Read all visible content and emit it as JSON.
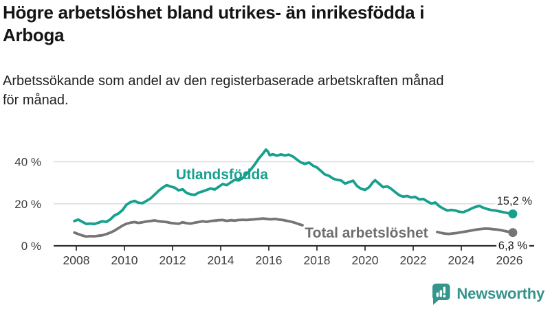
{
  "header": {
    "title": "Högre arbetslöshet bland utrikes- än inrikesfödda i\nArboga",
    "subtitle": "Arbetssökande som andel av den registerbaserade arbetskraften månad\nför månad."
  },
  "colors": {
    "series_teal": "#17a08e",
    "series_gray": "#757575",
    "series_gray_label": "#6e6e6e",
    "grid": "#dadada",
    "axis": "#2e2e2e",
    "tick_text": "#3d3d3d",
    "value_text": "#1f1f1f",
    "logo_teal": "#35948b"
  },
  "chart_data": {
    "type": "line",
    "title": "Högre arbetslöshet bland utrikes- än inrikesfödda i Arboga",
    "subtitle": "Arbetssökande som andel av den registerbaserade arbetskraften månad för månad.",
    "grid": true,
    "legend_position": "inline-labels",
    "x_axis": {
      "unit": "year",
      "range": [
        2007.9,
        2027.0
      ],
      "ticks": [
        2008,
        2010,
        2012,
        2014,
        2016,
        2018,
        2020,
        2022,
        2024,
        2026
      ]
    },
    "y_axis": {
      "unit": "%",
      "range": [
        0,
        50
      ],
      "ticks": [
        {
          "value": 0,
          "label": "0 %"
        },
        {
          "value": 20,
          "label": "20 %"
        },
        {
          "value": 40,
          "label": "40 %"
        }
      ]
    },
    "series": [
      {
        "name": "Utlandsfödda",
        "color": "#17a08e",
        "end_label": "15,2 %",
        "end_value": 15.2,
        "segments": [
          [
            [
              2007.92,
              11.8
            ],
            [
              2008.08,
              12.5
            ],
            [
              2008.25,
              11.4
            ],
            [
              2008.42,
              10.4
            ],
            [
              2008.58,
              10.6
            ],
            [
              2008.75,
              10.4
            ],
            [
              2008.92,
              11.0
            ],
            [
              2009.08,
              11.7
            ],
            [
              2009.25,
              11.4
            ],
            [
              2009.42,
              12.6
            ],
            [
              2009.58,
              14.4
            ],
            [
              2009.75,
              15.4
            ],
            [
              2009.92,
              17.0
            ],
            [
              2010.08,
              19.5
            ],
            [
              2010.25,
              20.8
            ],
            [
              2010.42,
              21.4
            ],
            [
              2010.58,
              20.5
            ],
            [
              2010.75,
              20.3
            ],
            [
              2010.92,
              21.4
            ],
            [
              2011.08,
              22.5
            ],
            [
              2011.25,
              24.3
            ],
            [
              2011.42,
              26.2
            ],
            [
              2011.58,
              27.6
            ],
            [
              2011.75,
              28.9
            ],
            [
              2011.92,
              28.2
            ],
            [
              2012.08,
              27.7
            ],
            [
              2012.25,
              26.4
            ],
            [
              2012.42,
              26.9
            ],
            [
              2012.58,
              25.2
            ],
            [
              2012.75,
              24.5
            ],
            [
              2012.92,
              24.2
            ],
            [
              2013.08,
              25.3
            ],
            [
              2013.25,
              25.9
            ],
            [
              2013.42,
              26.6
            ],
            [
              2013.58,
              27.3
            ],
            [
              2013.75,
              26.8
            ],
            [
              2013.92,
              28.1
            ],
            [
              2014.08,
              29.4
            ],
            [
              2014.25,
              28.9
            ],
            [
              2014.42,
              30.2
            ],
            [
              2014.58,
              31.4
            ],
            [
              2014.75,
              31.1
            ],
            [
              2014.92,
              32.3
            ],
            [
              2015.08,
              34.2
            ],
            [
              2015.25,
              36.3
            ],
            [
              2015.42,
              38.8
            ],
            [
              2015.58,
              41.5
            ],
            [
              2015.75,
              43.8
            ],
            [
              2015.88,
              45.8
            ],
            [
              2015.96,
              44.9
            ],
            [
              2016.04,
              43.1
            ],
            [
              2016.17,
              43.6
            ],
            [
              2016.33,
              42.9
            ],
            [
              2016.5,
              43.5
            ],
            [
              2016.67,
              43.0
            ],
            [
              2016.83,
              43.4
            ],
            [
              2017.0,
              42.5
            ],
            [
              2017.17,
              41.0
            ],
            [
              2017.33,
              39.7
            ],
            [
              2017.5,
              39.0
            ],
            [
              2017.67,
              39.6
            ],
            [
              2017.83,
              38.2
            ],
            [
              2018.0,
              37.3
            ],
            [
              2018.17,
              35.6
            ],
            [
              2018.33,
              34.0
            ],
            [
              2018.5,
              33.3
            ],
            [
              2018.67,
              32.0
            ],
            [
              2018.83,
              31.4
            ],
            [
              2019.0,
              31.1
            ],
            [
              2019.17,
              29.6
            ],
            [
              2019.33,
              30.3
            ],
            [
              2019.5,
              31.0
            ],
            [
              2019.67,
              28.4
            ],
            [
              2019.83,
              27.2
            ],
            [
              2020.0,
              26.6
            ],
            [
              2020.17,
              27.9
            ],
            [
              2020.33,
              30.3
            ],
            [
              2020.42,
              31.2
            ],
            [
              2020.58,
              29.6
            ],
            [
              2020.75,
              27.9
            ],
            [
              2020.92,
              28.3
            ],
            [
              2021.08,
              27.2
            ],
            [
              2021.25,
              25.6
            ],
            [
              2021.42,
              24.1
            ],
            [
              2021.58,
              23.4
            ],
            [
              2021.75,
              23.7
            ],
            [
              2021.92,
              23.0
            ],
            [
              2022.08,
              23.3
            ],
            [
              2022.25,
              22.1
            ],
            [
              2022.42,
              22.3
            ],
            [
              2022.58,
              21.2
            ],
            [
              2022.75,
              20.1
            ],
            [
              2022.92,
              20.6
            ],
            [
              2023.08,
              18.9
            ],
            [
              2023.25,
              17.7
            ],
            [
              2023.42,
              16.8
            ],
            [
              2023.58,
              17.1
            ],
            [
              2023.75,
              16.8
            ],
            [
              2023.92,
              16.2
            ],
            [
              2024.08,
              16.0
            ],
            [
              2024.25,
              16.8
            ],
            [
              2024.42,
              17.7
            ],
            [
              2024.58,
              18.5
            ],
            [
              2024.75,
              19.0
            ],
            [
              2024.92,
              18.1
            ],
            [
              2025.08,
              17.5
            ],
            [
              2025.25,
              17.0
            ],
            [
              2025.42,
              16.8
            ],
            [
              2025.58,
              16.4
            ],
            [
              2025.75,
              16.0
            ],
            [
              2025.92,
              15.6
            ],
            [
              2026.14,
              15.2
            ]
          ]
        ]
      },
      {
        "name": "Total arbetslöshet",
        "color": "#757575",
        "end_label": "6,3 %",
        "end_value": 6.3,
        "note": "line hidden behind inline series label between ~2017.4 and ~2023",
        "segments": [
          [
            [
              2007.92,
              6.3
            ],
            [
              2008.08,
              5.6
            ],
            [
              2008.25,
              4.9
            ],
            [
              2008.42,
              4.4
            ],
            [
              2008.58,
              4.6
            ],
            [
              2008.75,
              4.5
            ],
            [
              2008.92,
              4.8
            ],
            [
              2009.08,
              5.0
            ],
            [
              2009.25,
              5.6
            ],
            [
              2009.42,
              6.3
            ],
            [
              2009.58,
              7.2
            ],
            [
              2009.75,
              8.4
            ],
            [
              2009.92,
              9.6
            ],
            [
              2010.08,
              10.5
            ],
            [
              2010.25,
              11.0
            ],
            [
              2010.42,
              11.3
            ],
            [
              2010.58,
              10.9
            ],
            [
              2010.75,
              11.2
            ],
            [
              2010.92,
              11.6
            ],
            [
              2011.08,
              11.8
            ],
            [
              2011.25,
              12.1
            ],
            [
              2011.42,
              11.7
            ],
            [
              2011.58,
              11.5
            ],
            [
              2011.75,
              11.3
            ],
            [
              2011.92,
              10.9
            ],
            [
              2012.08,
              10.7
            ],
            [
              2012.25,
              10.5
            ],
            [
              2012.42,
              11.2
            ],
            [
              2012.58,
              10.8
            ],
            [
              2012.75,
              10.6
            ],
            [
              2012.92,
              11.0
            ],
            [
              2013.08,
              11.3
            ],
            [
              2013.25,
              11.7
            ],
            [
              2013.42,
              11.4
            ],
            [
              2013.58,
              11.8
            ],
            [
              2013.75,
              12.0
            ],
            [
              2013.92,
              12.2
            ],
            [
              2014.08,
              12.3
            ],
            [
              2014.25,
              11.9
            ],
            [
              2014.42,
              12.2
            ],
            [
              2014.58,
              12.0
            ],
            [
              2014.75,
              12.3
            ],
            [
              2014.92,
              12.4
            ],
            [
              2015.08,
              12.3
            ],
            [
              2015.25,
              12.5
            ],
            [
              2015.42,
              12.6
            ],
            [
              2015.58,
              12.8
            ],
            [
              2015.75,
              13.0
            ],
            [
              2015.92,
              12.8
            ],
            [
              2016.08,
              12.6
            ],
            [
              2016.25,
              12.8
            ],
            [
              2016.42,
              12.5
            ],
            [
              2016.58,
              12.3
            ],
            [
              2016.75,
              11.9
            ],
            [
              2016.92,
              11.5
            ],
            [
              2017.08,
              11.0
            ],
            [
              2017.25,
              10.3
            ],
            [
              2017.4,
              9.8
            ]
          ],
          [
            [
              2023.0,
              6.6
            ],
            [
              2023.17,
              6.1
            ],
            [
              2023.33,
              5.8
            ],
            [
              2023.5,
              5.7
            ],
            [
              2023.67,
              5.9
            ],
            [
              2023.83,
              6.1
            ],
            [
              2024.0,
              6.5
            ],
            [
              2024.17,
              6.8
            ],
            [
              2024.33,
              7.1
            ],
            [
              2024.5,
              7.5
            ],
            [
              2024.67,
              7.8
            ],
            [
              2024.83,
              8.0
            ],
            [
              2025.0,
              8.2
            ],
            [
              2025.17,
              8.1
            ],
            [
              2025.33,
              7.9
            ],
            [
              2025.5,
              7.7
            ],
            [
              2025.67,
              7.4
            ],
            [
              2025.83,
              7.0
            ],
            [
              2026.0,
              6.6
            ],
            [
              2026.14,
              6.3
            ]
          ]
        ]
      }
    ]
  },
  "footer": {
    "brand": "Newsworthy",
    "logo_icon": "bar-chart-speech-bubble-icon"
  }
}
